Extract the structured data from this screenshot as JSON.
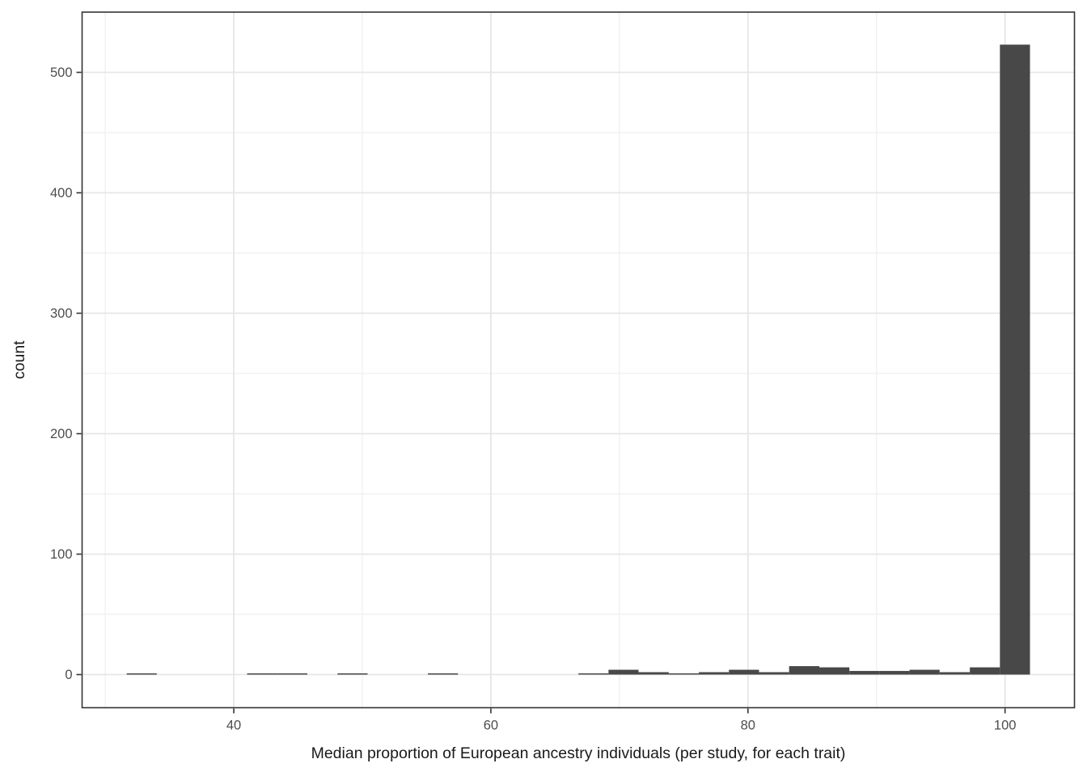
{
  "chart_data": {
    "type": "bar",
    "subtype": "histogram",
    "title": "",
    "xlabel": "Median proportion of European ancestry individuals (per study, for each trait)",
    "ylabel": "count",
    "x_ticks": [
      40,
      60,
      80,
      100
    ],
    "x_minor_ticks": [
      30,
      50,
      70,
      90
    ],
    "y_ticks": [
      0,
      100,
      200,
      300,
      400,
      500
    ],
    "y_minor_ticks": [
      50,
      150,
      250,
      350,
      450
    ],
    "xlim": [
      28.2,
      105.4
    ],
    "ylim": [
      -27.5,
      550
    ],
    "binwidth": 2.34,
    "grid": "on",
    "legend": "none",
    "bins": [
      {
        "x0": 31.67,
        "x1": 34.01,
        "count": 1
      },
      {
        "x0": 41.04,
        "x1": 43.38,
        "count": 1
      },
      {
        "x0": 43.38,
        "x1": 45.72,
        "count": 1
      },
      {
        "x0": 48.07,
        "x1": 50.41,
        "count": 1
      },
      {
        "x0": 55.1,
        "x1": 57.44,
        "count": 1
      },
      {
        "x0": 66.81,
        "x1": 69.15,
        "count": 1
      },
      {
        "x0": 69.15,
        "x1": 71.49,
        "count": 4
      },
      {
        "x0": 71.49,
        "x1": 73.84,
        "count": 2
      },
      {
        "x0": 73.84,
        "x1": 76.18,
        "count": 1
      },
      {
        "x0": 76.18,
        "x1": 78.52,
        "count": 2
      },
      {
        "x0": 78.52,
        "x1": 80.86,
        "count": 4
      },
      {
        "x0": 80.86,
        "x1": 83.2,
        "count": 2
      },
      {
        "x0": 83.2,
        "x1": 85.55,
        "count": 7
      },
      {
        "x0": 85.55,
        "x1": 87.89,
        "count": 6
      },
      {
        "x0": 87.89,
        "x1": 90.23,
        "count": 3
      },
      {
        "x0": 90.23,
        "x1": 92.57,
        "count": 3
      },
      {
        "x0": 92.57,
        "x1": 94.91,
        "count": 4
      },
      {
        "x0": 94.91,
        "x1": 97.26,
        "count": 2
      },
      {
        "x0": 97.26,
        "x1": 99.6,
        "count": 6
      },
      {
        "x0": 99.6,
        "x1": 101.94,
        "count": 523
      }
    ],
    "colors": {
      "bar_fill": "#484848",
      "panel_background": "#ffffff",
      "figure_background": "#ffffff",
      "major_grid": "#e6e6e6",
      "minor_grid": "#efefef",
      "panel_border": "#333333",
      "tick_mark": "#333333",
      "tick_label": "#4d4d4d",
      "axis_title": "#1a1a1a"
    }
  }
}
